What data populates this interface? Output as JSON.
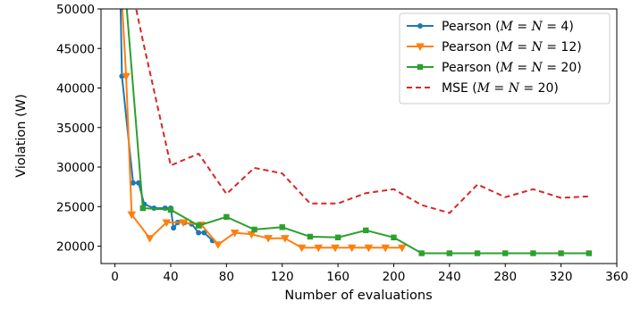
{
  "chart_data": {
    "type": "line",
    "xlabel": "Number of evaluations",
    "ylabel": "Violation (W)",
    "xlim": [
      -10,
      360
    ],
    "ylim": [
      17800,
      50000
    ],
    "xticks": [
      0,
      40,
      80,
      120,
      160,
      200,
      240,
      280,
      320,
      360
    ],
    "yticks": [
      20000,
      25000,
      30000,
      35000,
      40000,
      45000,
      50000
    ],
    "legend_position": "top-right",
    "series": [
      {
        "name": "Pearson (M = N = 4)",
        "legend": {
          "prefix": "Pearson (",
          "var1": "M",
          "mid": " = ",
          "var2": "N",
          "suffix": " = 4)"
        },
        "color": "#1f77b4",
        "marker": "circle",
        "linestyle": "solid",
        "points": [
          [
            4,
            51000
          ],
          [
            5,
            41500
          ],
          [
            13,
            28000
          ],
          [
            17,
            28000
          ],
          [
            21,
            25300
          ],
          [
            28,
            24800
          ],
          [
            36,
            24800
          ],
          [
            40,
            24800
          ],
          [
            42,
            22300
          ],
          [
            45,
            23000
          ],
          [
            50,
            23000
          ],
          [
            55,
            22800
          ],
          [
            60,
            21700
          ],
          [
            64,
            21700
          ],
          [
            70,
            20700
          ]
        ]
      },
      {
        "name": "Pearson (M = N = 12)",
        "legend": {
          "prefix": "Pearson (",
          "var1": "M",
          "mid": " = ",
          "var2": "N",
          "suffix": " = 12)"
        },
        "color": "#ff7f0e",
        "marker": "triangle-down",
        "linestyle": "solid",
        "points": [
          [
            5,
            51000
          ],
          [
            8,
            41500
          ],
          [
            12,
            24000
          ],
          [
            25,
            21000
          ],
          [
            37,
            23000
          ],
          [
            49,
            23000
          ],
          [
            62,
            22700
          ],
          [
            74,
            20200
          ],
          [
            86,
            21700
          ],
          [
            98,
            21500
          ],
          [
            110,
            21000
          ],
          [
            122,
            21000
          ],
          [
            134,
            19800
          ],
          [
            146,
            19800
          ],
          [
            158,
            19800
          ],
          [
            170,
            19800
          ],
          [
            182,
            19800
          ],
          [
            194,
            19800
          ],
          [
            206,
            19800
          ]
        ]
      },
      {
        "name": "Pearson (M = N = 20)",
        "legend": {
          "prefix": "Pearson (",
          "var1": "M",
          "mid": " = ",
          "var2": "N",
          "suffix": " = 20)"
        },
        "color": "#2ca02c",
        "marker": "square",
        "linestyle": "solid",
        "points": [
          [
            8,
            51000
          ],
          [
            20,
            24800
          ],
          [
            40,
            24600
          ],
          [
            60,
            22600
          ],
          [
            80,
            23700
          ],
          [
            100,
            22100
          ],
          [
            120,
            22400
          ],
          [
            140,
            21200
          ],
          [
            160,
            21100
          ],
          [
            180,
            22000
          ],
          [
            200,
            21100
          ],
          [
            220,
            19100
          ],
          [
            240,
            19100
          ],
          [
            260,
            19100
          ],
          [
            280,
            19100
          ],
          [
            300,
            19100
          ],
          [
            320,
            19100
          ],
          [
            340,
            19100
          ]
        ]
      },
      {
        "name": "MSE (M = N = 20)",
        "legend": {
          "prefix": "MSE (",
          "var1": "M",
          "mid": " = ",
          "var2": "N",
          "suffix": " = 20)"
        },
        "color": "#d62728",
        "marker": "none",
        "linestyle": "dashed",
        "points": [
          [
            14,
            51000
          ],
          [
            20,
            46000
          ],
          [
            40,
            30200
          ],
          [
            60,
            31700
          ],
          [
            80,
            26600
          ],
          [
            100,
            29900
          ],
          [
            120,
            29200
          ],
          [
            140,
            25400
          ],
          [
            160,
            25400
          ],
          [
            180,
            26700
          ],
          [
            200,
            27200
          ],
          [
            220,
            25200
          ],
          [
            240,
            24200
          ],
          [
            260,
            27800
          ],
          [
            280,
            26200
          ],
          [
            300,
            27200
          ],
          [
            320,
            26100
          ],
          [
            340,
            26300
          ]
        ]
      }
    ]
  }
}
